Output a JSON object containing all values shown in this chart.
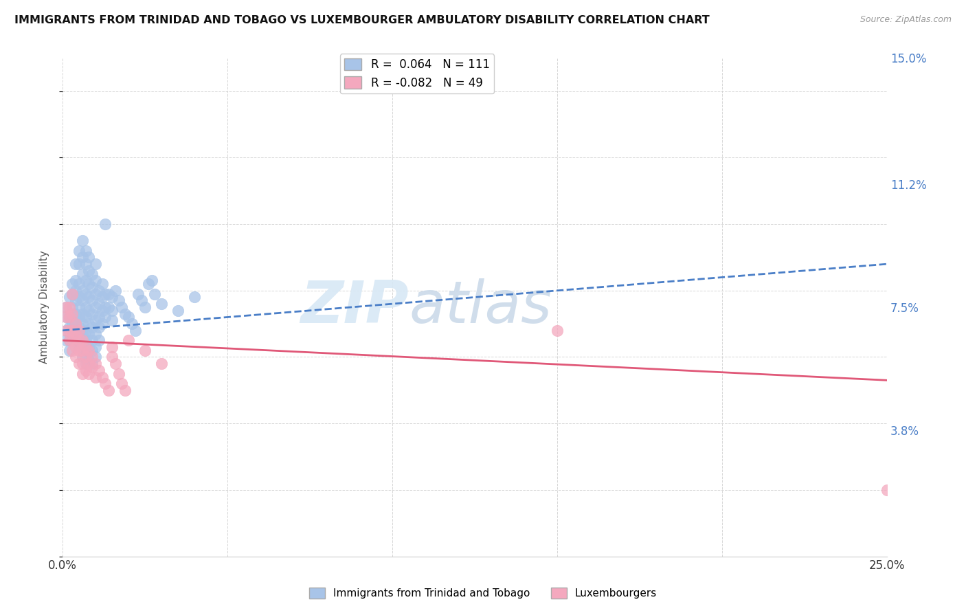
{
  "title": "IMMIGRANTS FROM TRINIDAD AND TOBAGO VS LUXEMBOURGER AMBULATORY DISABILITY CORRELATION CHART",
  "source": "Source: ZipAtlas.com",
  "ylabel": "Ambulatory Disability",
  "x_min": 0.0,
  "x_max": 0.25,
  "y_min": 0.0,
  "y_max": 0.15,
  "y_tick_labels_right": [
    "15.0%",
    "11.2%",
    "7.5%",
    "3.8%"
  ],
  "y_tick_vals_right": [
    0.15,
    0.112,
    0.075,
    0.038
  ],
  "color_blue": "#a8c4e8",
  "color_pink": "#f4a8be",
  "line_color_blue": "#4a7ec7",
  "line_color_pink": "#e05878",
  "R_blue": 0.064,
  "N_blue": 111,
  "R_pink": -0.082,
  "N_pink": 49,
  "legend_label_blue": "Immigrants from Trinidad and Tobago",
  "legend_label_pink": "Luxembourgers",
  "blue_line_x": [
    0.0,
    0.25
  ],
  "blue_line_y": [
    0.068,
    0.088
  ],
  "pink_line_x": [
    0.0,
    0.25
  ],
  "pink_line_y": [
    0.065,
    0.053
  ],
  "blue_scatter": [
    [
      0.001,
      0.072
    ],
    [
      0.001,
      0.075
    ],
    [
      0.001,
      0.068
    ],
    [
      0.001,
      0.065
    ],
    [
      0.002,
      0.078
    ],
    [
      0.002,
      0.072
    ],
    [
      0.002,
      0.069
    ],
    [
      0.002,
      0.065
    ],
    [
      0.002,
      0.062
    ],
    [
      0.003,
      0.082
    ],
    [
      0.003,
      0.079
    ],
    [
      0.003,
      0.075
    ],
    [
      0.003,
      0.073
    ],
    [
      0.003,
      0.07
    ],
    [
      0.003,
      0.068
    ],
    [
      0.003,
      0.065
    ],
    [
      0.004,
      0.088
    ],
    [
      0.004,
      0.083
    ],
    [
      0.004,
      0.08
    ],
    [
      0.004,
      0.077
    ],
    [
      0.004,
      0.073
    ],
    [
      0.004,
      0.07
    ],
    [
      0.004,
      0.068
    ],
    [
      0.004,
      0.065
    ],
    [
      0.005,
      0.092
    ],
    [
      0.005,
      0.088
    ],
    [
      0.005,
      0.082
    ],
    [
      0.005,
      0.078
    ],
    [
      0.005,
      0.075
    ],
    [
      0.005,
      0.072
    ],
    [
      0.005,
      0.069
    ],
    [
      0.005,
      0.066
    ],
    [
      0.005,
      0.063
    ],
    [
      0.006,
      0.095
    ],
    [
      0.006,
      0.09
    ],
    [
      0.006,
      0.085
    ],
    [
      0.006,
      0.08
    ],
    [
      0.006,
      0.077
    ],
    [
      0.006,
      0.073
    ],
    [
      0.006,
      0.07
    ],
    [
      0.006,
      0.067
    ],
    [
      0.006,
      0.064
    ],
    [
      0.006,
      0.06
    ],
    [
      0.007,
      0.092
    ],
    [
      0.007,
      0.088
    ],
    [
      0.007,
      0.083
    ],
    [
      0.007,
      0.079
    ],
    [
      0.007,
      0.075
    ],
    [
      0.007,
      0.072
    ],
    [
      0.007,
      0.068
    ],
    [
      0.007,
      0.065
    ],
    [
      0.007,
      0.061
    ],
    [
      0.007,
      0.058
    ],
    [
      0.008,
      0.09
    ],
    [
      0.008,
      0.086
    ],
    [
      0.008,
      0.082
    ],
    [
      0.008,
      0.078
    ],
    [
      0.008,
      0.074
    ],
    [
      0.008,
      0.07
    ],
    [
      0.008,
      0.067
    ],
    [
      0.008,
      0.063
    ],
    [
      0.008,
      0.059
    ],
    [
      0.009,
      0.085
    ],
    [
      0.009,
      0.081
    ],
    [
      0.009,
      0.077
    ],
    [
      0.009,
      0.073
    ],
    [
      0.009,
      0.069
    ],
    [
      0.009,
      0.065
    ],
    [
      0.009,
      0.062
    ],
    [
      0.009,
      0.058
    ],
    [
      0.01,
      0.088
    ],
    [
      0.01,
      0.083
    ],
    [
      0.01,
      0.079
    ],
    [
      0.01,
      0.075
    ],
    [
      0.01,
      0.071
    ],
    [
      0.01,
      0.067
    ],
    [
      0.01,
      0.063
    ],
    [
      0.01,
      0.06
    ],
    [
      0.011,
      0.08
    ],
    [
      0.011,
      0.076
    ],
    [
      0.011,
      0.072
    ],
    [
      0.011,
      0.069
    ],
    [
      0.011,
      0.065
    ],
    [
      0.012,
      0.082
    ],
    [
      0.012,
      0.078
    ],
    [
      0.012,
      0.074
    ],
    [
      0.012,
      0.07
    ],
    [
      0.013,
      0.1
    ],
    [
      0.013,
      0.079
    ],
    [
      0.013,
      0.075
    ],
    [
      0.013,
      0.072
    ],
    [
      0.014,
      0.079
    ],
    [
      0.014,
      0.075
    ],
    [
      0.015,
      0.078
    ],
    [
      0.015,
      0.074
    ],
    [
      0.015,
      0.071
    ],
    [
      0.016,
      0.08
    ],
    [
      0.017,
      0.077
    ],
    [
      0.018,
      0.075
    ],
    [
      0.019,
      0.073
    ],
    [
      0.02,
      0.072
    ],
    [
      0.021,
      0.07
    ],
    [
      0.022,
      0.068
    ],
    [
      0.023,
      0.079
    ],
    [
      0.024,
      0.077
    ],
    [
      0.025,
      0.075
    ],
    [
      0.026,
      0.082
    ],
    [
      0.027,
      0.083
    ],
    [
      0.028,
      0.079
    ],
    [
      0.03,
      0.076
    ],
    [
      0.035,
      0.074
    ],
    [
      0.04,
      0.078
    ]
  ],
  "pink_scatter": [
    [
      0.001,
      0.068
    ],
    [
      0.001,
      0.075
    ],
    [
      0.001,
      0.072
    ],
    [
      0.002,
      0.075
    ],
    [
      0.002,
      0.072
    ],
    [
      0.002,
      0.068
    ],
    [
      0.002,
      0.065
    ],
    [
      0.003,
      0.079
    ],
    [
      0.003,
      0.073
    ],
    [
      0.003,
      0.068
    ],
    [
      0.003,
      0.065
    ],
    [
      0.003,
      0.062
    ],
    [
      0.004,
      0.07
    ],
    [
      0.004,
      0.067
    ],
    [
      0.004,
      0.063
    ],
    [
      0.004,
      0.06
    ],
    [
      0.005,
      0.068
    ],
    [
      0.005,
      0.065
    ],
    [
      0.005,
      0.062
    ],
    [
      0.005,
      0.058
    ],
    [
      0.006,
      0.065
    ],
    [
      0.006,
      0.062
    ],
    [
      0.006,
      0.058
    ],
    [
      0.006,
      0.055
    ],
    [
      0.007,
      0.063
    ],
    [
      0.007,
      0.06
    ],
    [
      0.007,
      0.056
    ],
    [
      0.008,
      0.062
    ],
    [
      0.008,
      0.058
    ],
    [
      0.008,
      0.055
    ],
    [
      0.009,
      0.06
    ],
    [
      0.009,
      0.057
    ],
    [
      0.01,
      0.058
    ],
    [
      0.01,
      0.054
    ],
    [
      0.011,
      0.056
    ],
    [
      0.012,
      0.054
    ],
    [
      0.013,
      0.052
    ],
    [
      0.014,
      0.05
    ],
    [
      0.015,
      0.063
    ],
    [
      0.015,
      0.06
    ],
    [
      0.016,
      0.058
    ],
    [
      0.017,
      0.055
    ],
    [
      0.018,
      0.052
    ],
    [
      0.019,
      0.05
    ],
    [
      0.02,
      0.065
    ],
    [
      0.025,
      0.062
    ],
    [
      0.03,
      0.058
    ],
    [
      0.15,
      0.068
    ],
    [
      0.25,
      0.02
    ]
  ]
}
